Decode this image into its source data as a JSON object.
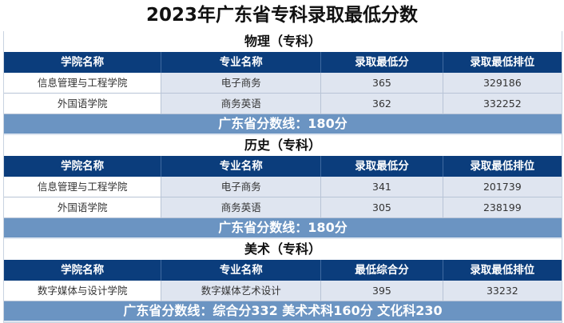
{
  "title": "2023年广东省专科录取最低分数",
  "sections": [
    {
      "name": "物理（专科）",
      "headers": [
        "学院名称",
        "专业名称",
        "录取最低分",
        "录取最低排位"
      ],
      "rows": [
        [
          "信息管理与工程学院",
          "电子商务",
          "365",
          "329186"
        ],
        [
          "外国语学院",
          "商务英语",
          "362",
          "332252"
        ]
      ],
      "footer": "广东省分数线：180分"
    },
    {
      "name": "历史（专科）",
      "headers": [
        "学院名称",
        "专业名称",
        "录取最低分",
        "录取最低排位"
      ],
      "rows": [
        [
          "信息管理与工程学院",
          "电子商务",
          "341",
          "201739"
        ],
        [
          "外国语学院",
          "商务英语",
          "305",
          "238199"
        ]
      ],
      "footer": "广东省分数线：180分"
    },
    {
      "name": "美术（专科）",
      "headers": [
        "学院名称",
        "专业名称",
        "最低综合分",
        "录取最低排位"
      ],
      "rows": [
        [
          "数字媒体与设计学院",
          "数字媒体艺术设计",
          "395",
          "33232"
        ]
      ],
      "footer": "广东省分数线：综合分332  美术术科160分  文化科230"
    }
  ]
}
